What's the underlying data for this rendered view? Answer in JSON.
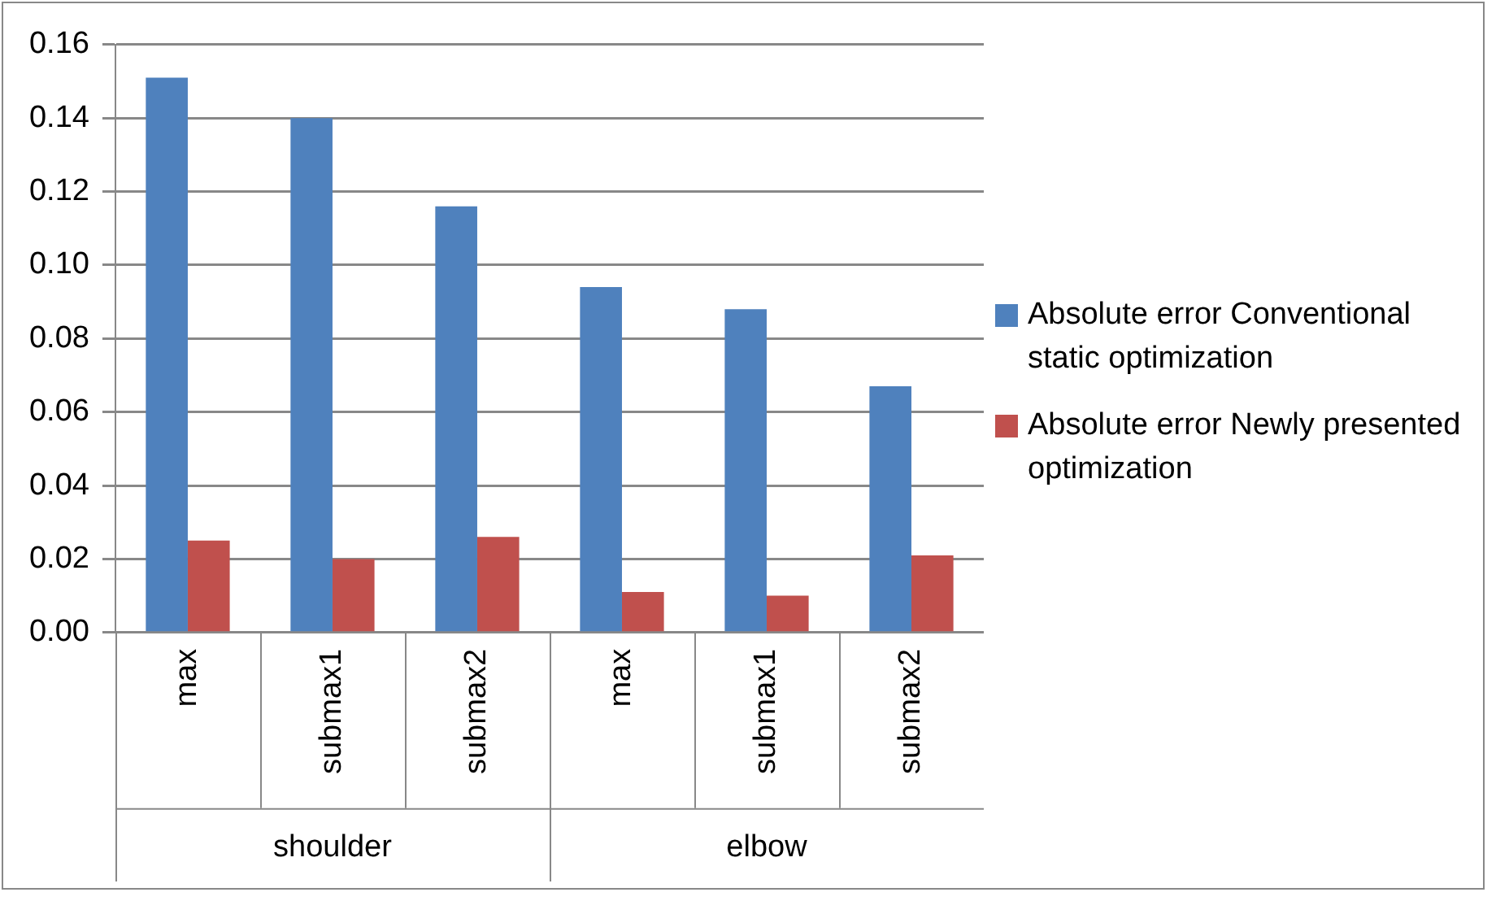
{
  "chart_data": {
    "type": "bar",
    "categories": [
      "max",
      "submax1",
      "submax2",
      "max",
      "submax1",
      "submax2"
    ],
    "series": [
      {
        "name": "Absolute error Conventional static optimization",
        "color": "#4f81bd",
        "values": [
          0.151,
          0.14,
          0.116,
          0.094,
          0.088,
          0.067
        ]
      },
      {
        "name": "Absolute error Newly presented optimization",
        "color": "#c0504d",
        "values": [
          0.025,
          0.02,
          0.026,
          0.011,
          0.01,
          0.021
        ]
      }
    ],
    "annotations": [
      "shoulder",
      "elbow"
    ],
    "ylim": [
      0,
      0.16
    ],
    "yticks": [
      {
        "value": 0,
        "label": "0.00"
      },
      0.02,
      0.04,
      0.06,
      0.08,
      {
        "value": 0.1,
        "label": "0.10"
      },
      0.12,
      0.14,
      0.16
    ],
    "grid": "y",
    "legend": "right"
  }
}
